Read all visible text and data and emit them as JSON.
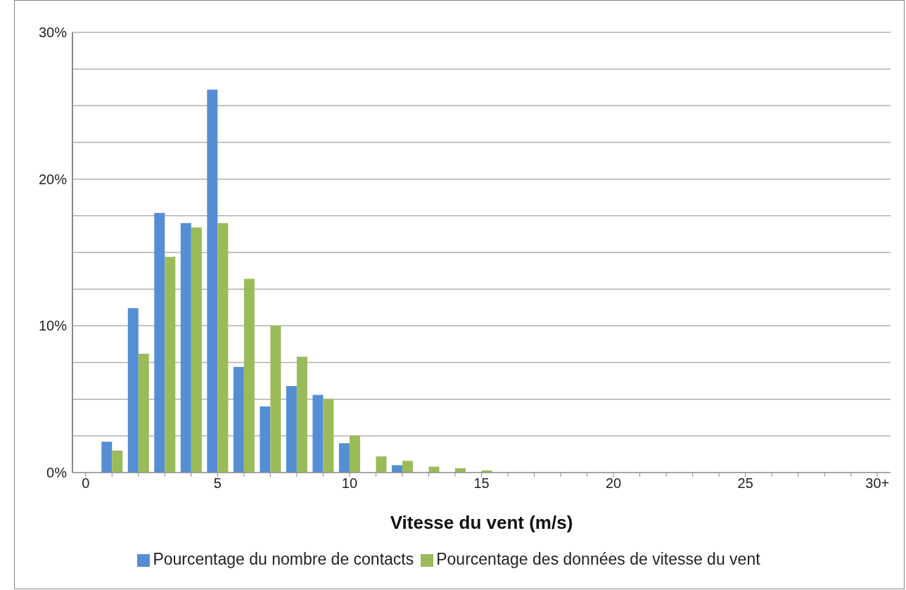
{
  "chart_data": {
    "type": "bar",
    "xlabel": "Vitesse du vent (m/s)",
    "categories": [
      "0",
      null,
      null,
      null,
      null,
      "5",
      null,
      null,
      null,
      null,
      "10",
      null,
      null,
      null,
      null,
      "15",
      null,
      null,
      null,
      null,
      "20",
      null,
      null,
      null,
      null,
      "25",
      null,
      null,
      null,
      null,
      "30+"
    ],
    "series": [
      {
        "name": "Pourcentage du nombre de contacts",
        "color": "#558ed5",
        "values": [
          0,
          2.1,
          11.2,
          17.7,
          17.0,
          26.1,
          7.2,
          4.5,
          5.9,
          5.3,
          2.0,
          0,
          0.5,
          0,
          0,
          0,
          0,
          0,
          0,
          0,
          0,
          0,
          0,
          0,
          0,
          0,
          0,
          0,
          0,
          0,
          0
        ]
      },
      {
        "name": "Pourcentage des données de vitesse du vent",
        "color": "#9bbb59",
        "values": [
          0,
          1.5,
          8.1,
          14.7,
          16.7,
          17.0,
          13.2,
          10.0,
          7.9,
          5.0,
          2.5,
          1.1,
          0.8,
          0.4,
          0.3,
          0.1,
          0,
          0,
          0,
          0,
          0,
          0,
          0,
          0,
          0,
          0,
          0,
          0,
          0,
          0,
          0
        ]
      }
    ],
    "ylim": [
      0,
      30
    ],
    "yticks": [
      {
        "value": 0,
        "label": "0%"
      },
      {
        "value": 2.5,
        "label": null
      },
      {
        "value": 5,
        "label": null
      },
      {
        "value": 7.5,
        "label": null
      },
      {
        "value": 10,
        "label": "10%"
      },
      {
        "value": 12.5,
        "label": null
      },
      {
        "value": 15,
        "label": null
      },
      {
        "value": 17.5,
        "label": null
      },
      {
        "value": 20,
        "label": "20%"
      },
      {
        "value": 22.5,
        "label": null
      },
      {
        "value": 25,
        "label": null
      },
      {
        "value": 27.5,
        "label": null
      },
      {
        "value": 30,
        "label": "30%"
      }
    ],
    "grid": "y",
    "legend": "bottom"
  }
}
